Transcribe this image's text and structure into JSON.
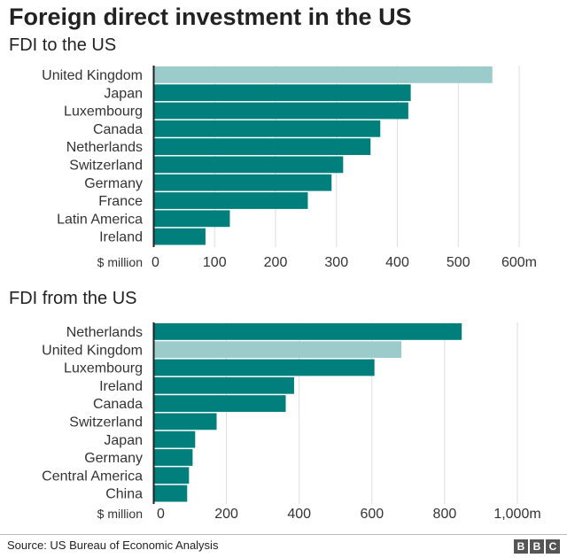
{
  "title": "Foreign direct investment in the US",
  "source": "Source: US Bureau of Economic Analysis",
  "logo": "BBC",
  "colors": {
    "bar": "#007f7c",
    "highlight": "#9bcccb",
    "grid": "#dddddd",
    "axis": "#222222"
  },
  "chart_data": [
    {
      "type": "bar",
      "orientation": "horizontal",
      "title": "FDI to the US",
      "unit_label": "$ million",
      "categories": [
        "United Kingdom",
        "Japan",
        "Luxembourg",
        "Canada",
        "Netherlands",
        "Switzerland",
        "Germany",
        "France",
        "Latin America",
        "Ireland"
      ],
      "values": [
        556,
        422,
        418,
        372,
        356,
        311,
        292,
        253,
        125,
        85
      ],
      "highlight": "United Kingdom",
      "xlim": [
        0,
        600
      ],
      "ticks": [
        0,
        100,
        200,
        300,
        400,
        500,
        600
      ],
      "tick_labels": [
        "0",
        "100",
        "200",
        "300",
        "400",
        "500",
        "600m"
      ],
      "grid": true
    },
    {
      "type": "bar",
      "orientation": "horizontal",
      "title": "FDI from the US",
      "unit_label": "$ million",
      "categories": [
        "Netherlands",
        "United Kingdom",
        "Luxembourg",
        "Ireland",
        "Canada",
        "Switzerland",
        "Japan",
        "Germany",
        "Central America",
        "China"
      ],
      "values": [
        847,
        681,
        607,
        386,
        363,
        173,
        114,
        107,
        97,
        92
      ],
      "highlight": "United Kingdom",
      "xlim": [
        0,
        1000
      ],
      "ticks": [
        0,
        200,
        400,
        600,
        800,
        1000
      ],
      "tick_labels": [
        "0",
        "200",
        "400",
        "600",
        "800",
        "1,000m"
      ],
      "grid": true
    }
  ]
}
